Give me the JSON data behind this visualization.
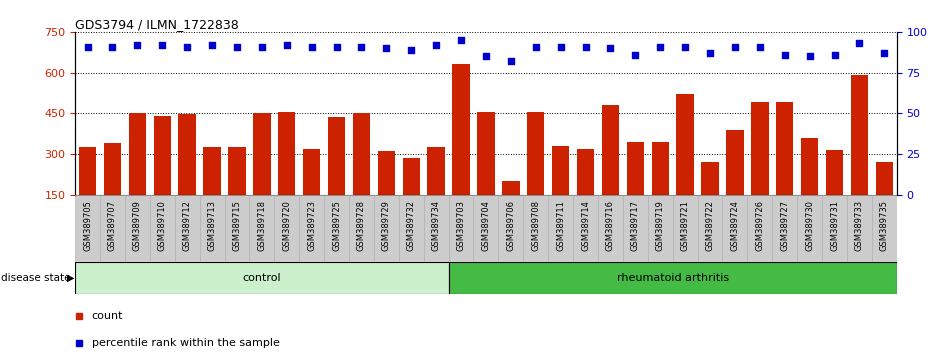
{
  "title": "GDS3794 / ILMN_1722838",
  "samples": [
    "GSM389705",
    "GSM389707",
    "GSM389709",
    "GSM389710",
    "GSM389712",
    "GSM389713",
    "GSM389715",
    "GSM389718",
    "GSM389720",
    "GSM389723",
    "GSM389725",
    "GSM389728",
    "GSM389729",
    "GSM389732",
    "GSM389734",
    "GSM389703",
    "GSM389704",
    "GSM389706",
    "GSM389708",
    "GSM389711",
    "GSM389714",
    "GSM389716",
    "GSM389717",
    "GSM389719",
    "GSM389721",
    "GSM389722",
    "GSM389724",
    "GSM389726",
    "GSM389727",
    "GSM389730",
    "GSM389731",
    "GSM389733",
    "GSM389735"
  ],
  "bar_values": [
    325,
    340,
    450,
    440,
    447,
    325,
    325,
    450,
    455,
    318,
    438,
    450,
    312,
    287,
    325,
    630,
    455,
    200,
    453,
    330,
    320,
    480,
    343,
    345,
    520,
    272,
    390,
    490,
    490,
    360,
    315,
    590,
    270
  ],
  "percentile_values": [
    91,
    91,
    92,
    92,
    91,
    92,
    91,
    91,
    92,
    91,
    91,
    91,
    90,
    89,
    92,
    95,
    85,
    82,
    91,
    91,
    91,
    90,
    86,
    91,
    91,
    87,
    91,
    91,
    86,
    85,
    86,
    93,
    87
  ],
  "bar_color": "#cc2200",
  "dot_color": "#0000cc",
  "ylim_left": [
    150,
    750
  ],
  "ylim_right": [
    0,
    100
  ],
  "yticks_left": [
    150,
    300,
    450,
    600,
    750
  ],
  "yticks_right": [
    0,
    25,
    50,
    75,
    100
  ],
  "control_color": "#ccf0cc",
  "ra_color": "#44bb44",
  "label_bg_color": "#cccccc",
  "ctrl_count": 15,
  "n_total": 33
}
